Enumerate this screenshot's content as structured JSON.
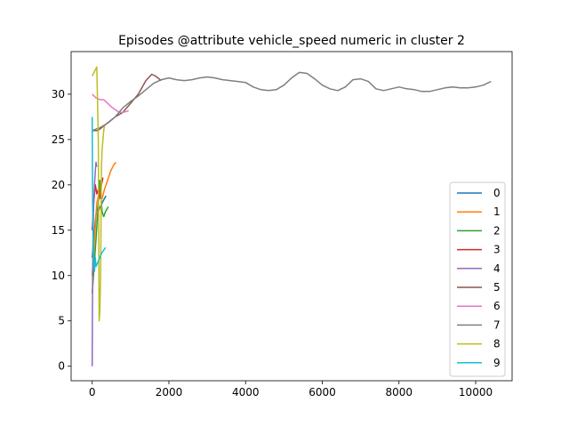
{
  "chart_data": {
    "type": "line",
    "title": "Episodes @attribute vehicle_speed numeric in cluster 2",
    "xlabel": "",
    "ylabel": "",
    "xlim": [
      -550,
      10950
    ],
    "ylim": [
      -1.6,
      34.7
    ],
    "xticks": [
      0,
      2000,
      4000,
      6000,
      8000,
      10000
    ],
    "yticks": [
      0,
      5,
      10,
      15,
      20,
      25,
      30
    ],
    "grid": false,
    "legend": {
      "placement": "lower right"
    },
    "series": [
      {
        "name": "0",
        "color": "#1f77b4",
        "x": [
          0,
          40,
          80,
          120,
          160,
          200,
          260,
          320,
          360
        ],
        "y": [
          12,
          14,
          16,
          17.5,
          17,
          17.5,
          18,
          18.5,
          18.8
        ]
      },
      {
        "name": "1",
        "color": "#ff7f0e",
        "x": [
          0,
          60,
          120,
          200,
          260,
          320,
          400,
          480,
          560,
          620
        ],
        "y": [
          10,
          14,
          18,
          19.5,
          18.5,
          19.5,
          20.5,
          21.5,
          22.2,
          22.5
        ]
      },
      {
        "name": "2",
        "color": "#2ca02c",
        "x": [
          0,
          100,
          200,
          260,
          300,
          340,
          380,
          420
        ],
        "y": [
          8,
          14,
          20.5,
          17,
          16.5,
          17,
          17.3,
          17.6
        ]
      },
      {
        "name": "3",
        "color": "#d62728",
        "x": [
          0,
          40,
          80,
          120,
          160,
          200,
          240,
          280
        ],
        "y": [
          15,
          18,
          20,
          19,
          19.5,
          18.5,
          20,
          20.8
        ]
      },
      {
        "name": "4",
        "color": "#9467bd",
        "x": [
          0,
          5,
          10,
          20,
          30,
          40,
          60,
          80,
          100,
          120
        ],
        "y": [
          0,
          5,
          10,
          14,
          16,
          18,
          20,
          21.5,
          22.5,
          22
        ]
      },
      {
        "name": "5",
        "color": "#8c564b",
        "x": [
          0,
          150,
          300,
          450,
          600,
          800,
          1000,
          1200,
          1400,
          1550,
          1650,
          1800
        ],
        "y": [
          26,
          26,
          26.5,
          27,
          27.5,
          28,
          29,
          30,
          31.5,
          32.2,
          32,
          31.5
        ]
      },
      {
        "name": "6",
        "color": "#e377c2",
        "x": [
          0,
          100,
          200,
          300,
          400,
          500,
          600,
          700,
          800,
          900,
          950
        ],
        "y": [
          30,
          29.6,
          29.4,
          29.4,
          29,
          28.6,
          28.3,
          28,
          28,
          28.1,
          28.2
        ]
      },
      {
        "name": "7",
        "color": "#7f7f7f",
        "x": [
          0,
          200,
          400,
          600,
          800,
          1000,
          1200,
          1400,
          1600,
          1800,
          2000,
          2200,
          2400,
          2600,
          2800,
          3000,
          3200,
          3400,
          3600,
          3800,
          4000,
          4200,
          4400,
          4600,
          4800,
          5000,
          5200,
          5400,
          5600,
          5800,
          6000,
          6200,
          6400,
          6600,
          6800,
          7000,
          7200,
          7400,
          7600,
          7800,
          8000,
          8200,
          8400,
          8600,
          8800,
          9000,
          9200,
          9400,
          9600,
          9800,
          10000,
          10200,
          10400
        ],
        "y": [
          26,
          26.3,
          26.8,
          27.5,
          28.5,
          29.2,
          29.8,
          30.5,
          31.2,
          31.6,
          31.8,
          31.6,
          31.5,
          31.6,
          31.8,
          31.9,
          31.8,
          31.6,
          31.5,
          31.4,
          31.3,
          30.8,
          30.5,
          30.4,
          30.5,
          31,
          31.8,
          32.4,
          32.3,
          31.7,
          31,
          30.6,
          30.4,
          30.8,
          31.6,
          31.7,
          31.4,
          30.6,
          30.4,
          30.6,
          30.8,
          30.6,
          30.5,
          30.3,
          30.3,
          30.5,
          30.7,
          30.8,
          30.7,
          30.7,
          30.8,
          31,
          31.4
        ]
      },
      {
        "name": "8",
        "color": "#bcbd22",
        "x": [
          0,
          60,
          120,
          160,
          180,
          200,
          220,
          240,
          260,
          280,
          300,
          320
        ],
        "y": [
          32,
          32.5,
          33,
          25,
          5,
          6,
          10,
          22,
          24,
          25,
          26,
          26.5
        ]
      },
      {
        "name": "9",
        "color": "#17becf",
        "x": [
          0,
          10,
          20,
          40,
          60,
          80,
          100,
          150,
          200,
          250,
          300,
          350
        ],
        "y": [
          27.5,
          18,
          15,
          11,
          10.5,
          12,
          11,
          11.5,
          12,
          12.5,
          12.8,
          13.1
        ]
      }
    ]
  }
}
